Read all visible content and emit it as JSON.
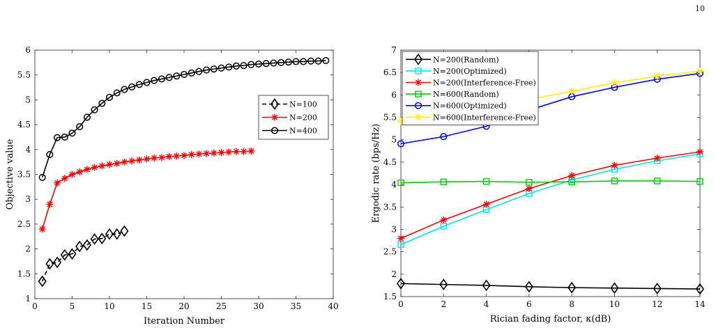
{
  "page": {
    "number": "10"
  },
  "chart_data": [
    {
      "type": "line",
      "xlabel": "Iteration Number",
      "ylabel": "Objective value",
      "xlim": [
        0,
        40
      ],
      "ylim": [
        1,
        6
      ],
      "xticks": [
        0,
        5,
        10,
        15,
        20,
        25,
        30,
        35,
        40
      ],
      "yticks": [
        1,
        1.5,
        2,
        2.5,
        3,
        3.5,
        4,
        4.5,
        5,
        5.5,
        6
      ],
      "grid": false,
      "legend_position": "right",
      "series": [
        {
          "name": "N=100",
          "color": "#000000",
          "marker": "diamond",
          "dash": "dashed",
          "x": [
            1,
            2,
            3,
            4,
            5,
            6,
            7,
            8,
            9,
            10,
            11,
            12
          ],
          "y": [
            1.35,
            1.7,
            1.73,
            1.88,
            1.9,
            2.05,
            2.08,
            2.2,
            2.21,
            2.3,
            2.3,
            2.36
          ]
        },
        {
          "name": "N=200",
          "color": "#ff0000",
          "marker": "star",
          "dash": "solid",
          "x": [
            1,
            2,
            3,
            4,
            5,
            6,
            7,
            8,
            9,
            10,
            11,
            12,
            13,
            14,
            15,
            16,
            17,
            18,
            19,
            20,
            21,
            22,
            23,
            24,
            25,
            26,
            27,
            28,
            29
          ],
          "y": [
            2.4,
            2.9,
            3.33,
            3.42,
            3.5,
            3.55,
            3.6,
            3.64,
            3.67,
            3.7,
            3.72,
            3.75,
            3.77,
            3.79,
            3.81,
            3.83,
            3.84,
            3.86,
            3.87,
            3.88,
            3.9,
            3.91,
            3.92,
            3.93,
            3.94,
            3.95,
            3.96,
            3.96,
            3.97
          ]
        },
        {
          "name": "N=400",
          "color": "#000000",
          "marker": "circle",
          "dash": "solid",
          "x": [
            1,
            2,
            3,
            4,
            5,
            6,
            7,
            8,
            9,
            10,
            11,
            12,
            13,
            14,
            15,
            16,
            17,
            18,
            19,
            20,
            21,
            22,
            23,
            24,
            25,
            26,
            27,
            28,
            29,
            30,
            31,
            32,
            33,
            34,
            35,
            36,
            37,
            38,
            39
          ],
          "y": [
            3.44,
            3.9,
            4.24,
            4.25,
            4.33,
            4.46,
            4.65,
            4.8,
            4.93,
            5.05,
            5.14,
            5.21,
            5.26,
            5.31,
            5.35,
            5.39,
            5.42,
            5.45,
            5.48,
            5.51,
            5.54,
            5.57,
            5.6,
            5.62,
            5.64,
            5.66,
            5.68,
            5.69,
            5.71,
            5.72,
            5.73,
            5.74,
            5.75,
            5.76,
            5.77,
            5.77,
            5.78,
            5.78,
            5.79
          ]
        }
      ]
    },
    {
      "type": "line",
      "xlabel": "Rician fading factor, κ(dB)",
      "ylabel": "Ergodic rate (bps/Hz)",
      "xlim": [
        0,
        14
      ],
      "ylim": [
        1.5,
        7
      ],
      "xticks": [
        0,
        2,
        4,
        6,
        8,
        10,
        12,
        14
      ],
      "yticks": [
        1.5,
        2,
        2.5,
        3,
        3.5,
        4,
        4.5,
        5,
        5.5,
        6,
        6.5,
        7
      ],
      "grid": false,
      "legend_position": "top-left",
      "series": [
        {
          "name": "N=200(Random)",
          "color": "#000000",
          "marker": "diamond",
          "x": [
            0,
            2,
            4,
            6,
            8,
            10,
            12,
            14
          ],
          "y": [
            1.79,
            1.77,
            1.75,
            1.72,
            1.7,
            1.69,
            1.68,
            1.67
          ]
        },
        {
          "name": "N=200(Optimized)",
          "color": "#00e5ee",
          "marker": "square",
          "x": [
            0,
            2,
            4,
            6,
            8,
            10,
            12,
            14
          ],
          "y": [
            2.66,
            3.07,
            3.44,
            3.8,
            4.1,
            4.34,
            4.53,
            4.68
          ]
        },
        {
          "name": "N=200(Interference-Free)",
          "color": "#ff0000",
          "marker": "star",
          "x": [
            0,
            2,
            4,
            6,
            8,
            10,
            12,
            14
          ],
          "y": [
            2.8,
            3.21,
            3.56,
            3.91,
            4.2,
            4.43,
            4.59,
            4.73
          ]
        },
        {
          "name": "N=600(Random)",
          "color": "#00cc00",
          "marker": "square",
          "x": [
            0,
            2,
            4,
            6,
            8,
            10,
            12,
            14
          ],
          "y": [
            4.04,
            4.06,
            4.07,
            4.05,
            4.06,
            4.08,
            4.08,
            4.07
          ]
        },
        {
          "name": "N=600(Optimized)",
          "color": "#0000ff",
          "marker": "circle",
          "x": [
            0,
            2,
            4,
            6,
            8,
            10,
            12,
            14
          ],
          "y": [
            4.91,
            5.07,
            5.3,
            5.66,
            5.96,
            6.17,
            6.35,
            6.48
          ]
        },
        {
          "name": "N=600(Interference-Free)",
          "color": "#ffee00",
          "marker": "star",
          "x": [
            0,
            2,
            4,
            6,
            8,
            10,
            12,
            14
          ],
          "y": [
            5.42,
            5.57,
            5.75,
            5.9,
            6.08,
            6.27,
            6.42,
            6.53
          ]
        }
      ]
    }
  ]
}
